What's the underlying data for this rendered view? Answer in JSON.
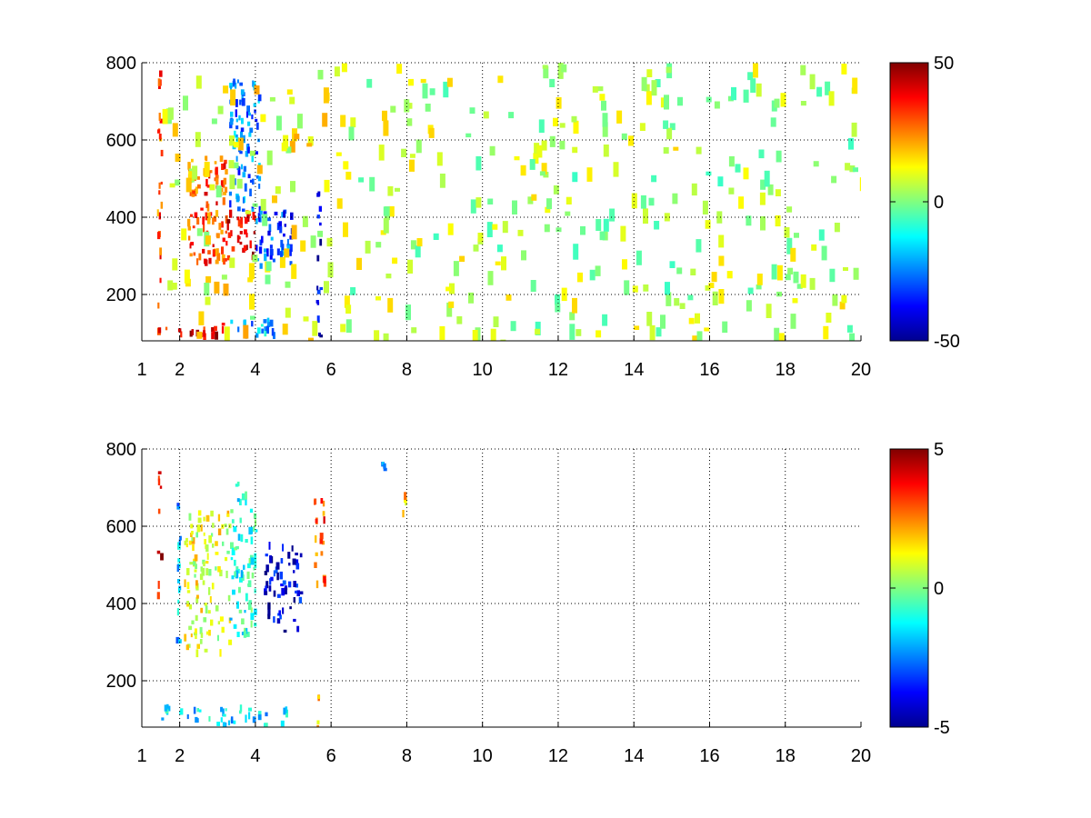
{
  "chart_data": [
    {
      "type": "heatmap",
      "title": "",
      "xlabel": "",
      "ylabel": "",
      "xlim": [
        1,
        20
      ],
      "ylim": [
        80,
        800
      ],
      "x_ticks": [
        1,
        2,
        4,
        6,
        8,
        10,
        12,
        14,
        16,
        18,
        20
      ],
      "x_tick_labels": [
        "1",
        "2",
        "4",
        "6",
        "8",
        "10",
        "12",
        "14",
        "16",
        "18",
        "20"
      ],
      "y_ticks": [
        200,
        400,
        600,
        800
      ],
      "y_tick_labels": [
        "200",
        "400",
        "600",
        "800"
      ],
      "grid": true,
      "colormap": "jet",
      "clim": [
        -50,
        50
      ],
      "colorbar_ticks": [
        -50,
        0,
        50
      ],
      "colorbar_tick_labels": [
        "-50",
        "0",
        "50"
      ],
      "features": [
        {
          "x": [
            1.4,
            1.5
          ],
          "y": [
            100,
            800
          ],
          "value": 30
        },
        {
          "x": [
            1.6,
            3.2
          ],
          "y": [
            100,
            130
          ],
          "value": 40
        },
        {
          "x": [
            2.2,
            3.2
          ],
          "y": [
            290,
            560
          ],
          "value": 30
        },
        {
          "x": [
            3.2,
            4.0
          ],
          "y": [
            300,
            420
          ],
          "value": 40
        },
        {
          "x": [
            3.3,
            4.1
          ],
          "y": [
            420,
            760
          ],
          "value": -25
        },
        {
          "x": [
            3.3,
            4.8
          ],
          "y": [
            100,
            140
          ],
          "value": -20
        },
        {
          "x": [
            4.0,
            5.0
          ],
          "y": [
            280,
            420
          ],
          "value": -30
        },
        {
          "x": [
            5.6,
            5.7
          ],
          "y": [
            80,
            500
          ],
          "value": -40
        },
        {
          "x": [
            1.5,
            6.0
          ],
          "y": [
            80,
            800
          ],
          "value": 10
        },
        {
          "x": [
            6.0,
            20.0
          ],
          "y": [
            80,
            800
          ],
          "value": 5
        }
      ]
    },
    {
      "type": "heatmap",
      "title": "",
      "xlabel": "",
      "ylabel": "",
      "xlim": [
        1,
        20
      ],
      "ylim": [
        80,
        800
      ],
      "x_ticks": [
        1,
        2,
        4,
        6,
        8,
        10,
        12,
        14,
        16,
        18,
        20
      ],
      "x_tick_labels": [
        "1",
        "2",
        "4",
        "6",
        "8",
        "10",
        "12",
        "14",
        "16",
        "18",
        "20"
      ],
      "y_ticks": [
        200,
        400,
        600,
        800
      ],
      "y_tick_labels": [
        "200",
        "400",
        "600",
        "800"
      ],
      "grid": true,
      "colormap": "jet",
      "clim": [
        -5,
        5
      ],
      "colorbar_ticks": [
        -5,
        0,
        5
      ],
      "colorbar_tick_labels": [
        "-5",
        "0",
        "5"
      ],
      "features": [
        {
          "x": [
            1.4,
            1.5
          ],
          "y": [
            420,
            790
          ],
          "value": 4
        },
        {
          "x": [
            1.9,
            2.0
          ],
          "y": [
            100,
            750
          ],
          "value": -2
        },
        {
          "x": [
            2.1,
            3.3
          ],
          "y": [
            280,
            650
          ],
          "value": 1
        },
        {
          "x": [
            3.3,
            4.0
          ],
          "y": [
            300,
            720
          ],
          "value": -1
        },
        {
          "x": [
            4.2,
            5.2
          ],
          "y": [
            330,
            560
          ],
          "value": -4
        },
        {
          "x": [
            5.5,
            5.8
          ],
          "y": [
            420,
            680
          ],
          "value": 3
        },
        {
          "x": [
            1.5,
            4.8
          ],
          "y": [
            90,
            140
          ],
          "value": -1.5
        },
        {
          "x": [
            5.6,
            5.7
          ],
          "y": [
            80,
            180
          ],
          "value": 2
        },
        {
          "x": [
            7.3,
            7.4
          ],
          "y": [
            750,
            770
          ],
          "value": -2
        },
        {
          "x": [
            7.85,
            7.95
          ],
          "y": [
            640,
            690
          ],
          "value": 2
        }
      ]
    }
  ]
}
